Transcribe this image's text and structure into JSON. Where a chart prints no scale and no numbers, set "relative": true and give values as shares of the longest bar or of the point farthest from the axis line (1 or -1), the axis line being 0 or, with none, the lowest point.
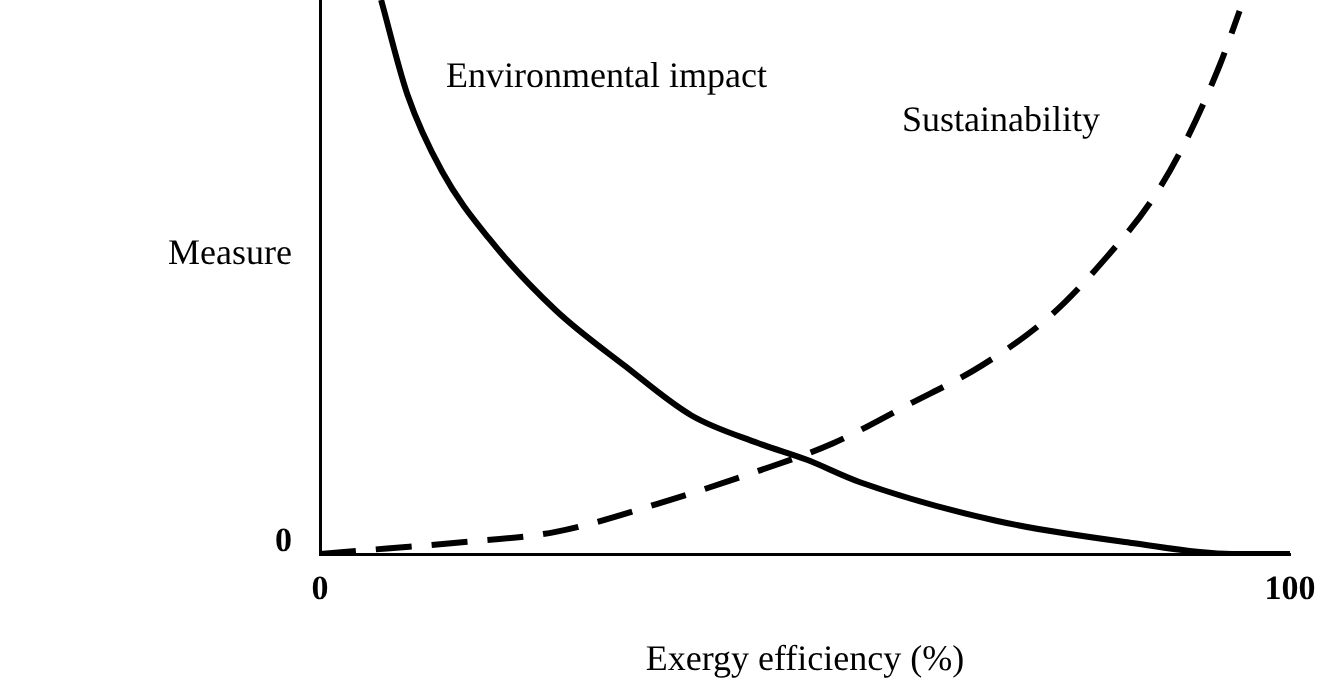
{
  "chart_data": {
    "type": "line",
    "xlabel": "Exergy efficiency (%)",
    "ylabel": "Measure",
    "relative": true,
    "xlim": [
      0,
      100
    ],
    "xticks": [
      0,
      100
    ],
    "grid": false,
    "legend": false,
    "marker": "none",
    "annotations": [
      "0"
    ],
    "series": [
      {
        "name": "Environmental impact",
        "color": "#000000",
        "line_style": "solid",
        "x": [
          6.3,
          9,
          12.6,
          17.4,
          24.3,
          31.4,
          38.3,
          45.2,
          50.2,
          55.6,
          69.7,
          83.7,
          94,
          100
        ],
        "values": [
          1,
          0.83,
          0.69,
          0.57,
          0.44,
          0.34,
          0.25,
          0.2,
          0.17,
          0.13,
          0.06,
          0.02,
          0,
          0
        ]
      },
      {
        "name": "Sustainability",
        "color": "#000000",
        "line_style": "dashed",
        "x": [
          0,
          6.9,
          13.8,
          24.3,
          34.7,
          45.2,
          52.9,
          60.7,
          68.2,
          75.3,
          80.8,
          85.8,
          89.1,
          92.7,
          94.8
        ],
        "values": [
          0,
          0.01,
          0.02,
          0.04,
          0.09,
          0.15,
          0.2,
          0.27,
          0.34,
          0.43,
          0.53,
          0.64,
          0.74,
          0.88,
          0.98
        ]
      }
    ]
  }
}
